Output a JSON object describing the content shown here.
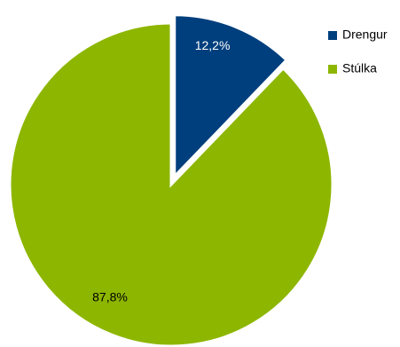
{
  "chart_data": {
    "type": "pie",
    "title": "",
    "legend_position": "top-right",
    "slices": [
      {
        "name": "Drengur",
        "value": 12.2,
        "label": "12,2%",
        "color": "#003f7d",
        "label_color": "#ffffff",
        "exploded": true
      },
      {
        "name": "Stúlka",
        "value": 87.8,
        "label": "87,8%",
        "color": "#8db600",
        "label_color": "#000000",
        "exploded": false
      }
    ]
  }
}
